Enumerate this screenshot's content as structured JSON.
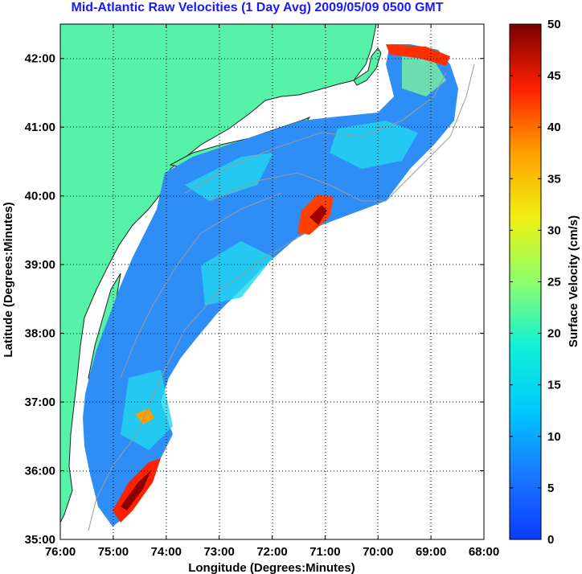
{
  "chart_data": {
    "type": "heatmap",
    "title": "Mid-Atlantic Raw Velocities (1 Day Avg) 2009/05/09 0500 GMT",
    "xlabel": "Longitude (Degrees:Minutes)",
    "ylabel": "Latitude (Degrees:Minutes)",
    "colorbar_label": "Surface Velocity (cm/s)",
    "x_ticks": [
      "76:00",
      "75:00",
      "74:00",
      "73:00",
      "72:00",
      "71:00",
      "70:00",
      "69:00",
      "68:00"
    ],
    "y_ticks": [
      "35:00",
      "36:00",
      "37:00",
      "38:00",
      "39:00",
      "40:00",
      "41:00",
      "42:00"
    ],
    "colorbar_ticks": [
      "0",
      "5",
      "10",
      "15",
      "20",
      "25",
      "30",
      "35",
      "40",
      "45",
      "50"
    ],
    "xlim": [
      -76,
      -68
    ],
    "ylim": [
      35,
      42.5
    ],
    "clim": [
      0,
      50
    ],
    "grid": true,
    "colormap": "jet",
    "land_color": "#55f2a8"
  }
}
